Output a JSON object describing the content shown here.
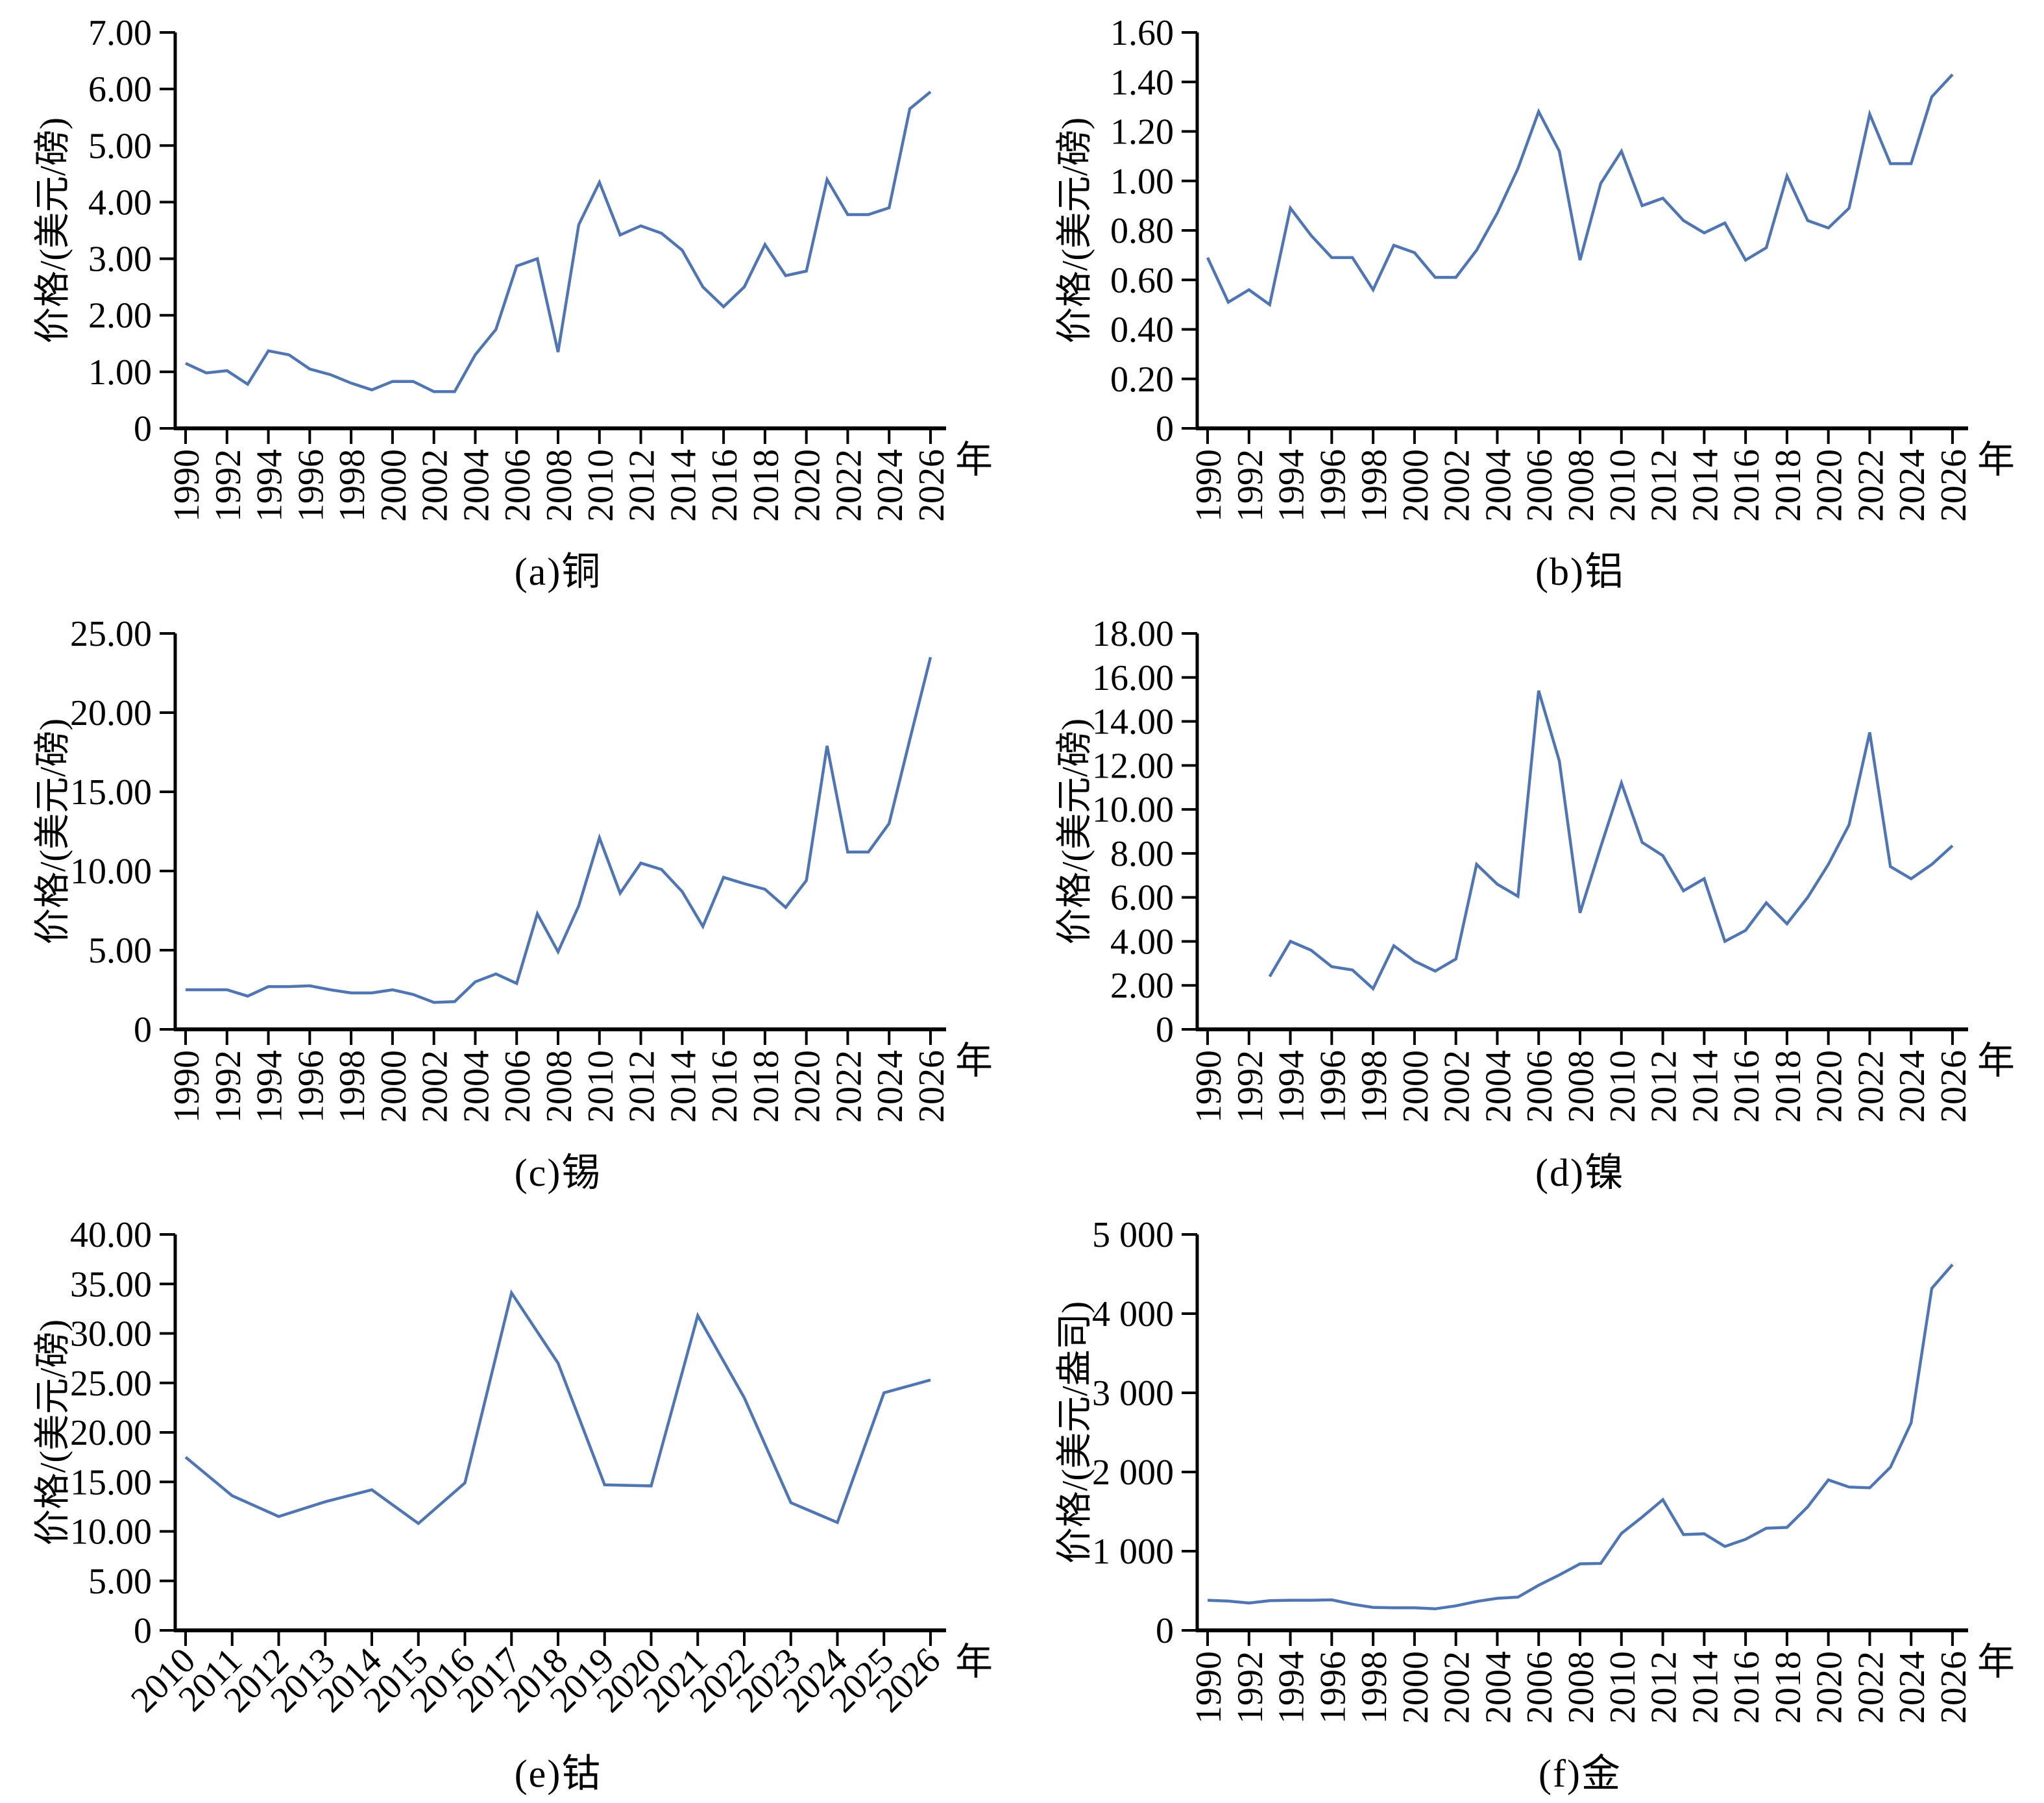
{
  "page": {
    "background": "#ffffff",
    "line_color": "#4f76b2",
    "axis_color": "#000000",
    "unit_label": "年"
  },
  "chart_data": [
    {
      "id": "a",
      "metal": "copper",
      "type": "line",
      "caption": "(a)铜",
      "ylabel": "价格/(美元/磅)",
      "xlabel": "年",
      "ylim": [
        0,
        7
      ],
      "x_label_step": 2,
      "x_label_rotation": 90,
      "grid": "off",
      "legend": "none",
      "y_ticks": [
        {
          "v": 0,
          "t": "0"
        },
        {
          "v": 1,
          "t": "1.00"
        },
        {
          "v": 2,
          "t": "2.00"
        },
        {
          "v": 3,
          "t": "3.00"
        },
        {
          "v": 4,
          "t": "4.00"
        },
        {
          "v": 5,
          "t": "5.00"
        },
        {
          "v": 6,
          "t": "6.00"
        },
        {
          "v": 7,
          "t": "7.00"
        }
      ],
      "x": [
        1990,
        1991,
        1992,
        1993,
        1994,
        1995,
        1996,
        1997,
        1998,
        1999,
        2000,
        2001,
        2002,
        2003,
        2004,
        2005,
        2006,
        2007,
        2008,
        2009,
        2010,
        2011,
        2012,
        2013,
        2014,
        2015,
        2016,
        2017,
        2018,
        2019,
        2020,
        2021,
        2022,
        2023,
        2024,
        2025,
        2026
      ],
      "values": [
        1.15,
        0.98,
        1.02,
        0.78,
        1.37,
        1.3,
        1.05,
        0.95,
        0.8,
        0.68,
        0.83,
        0.83,
        0.65,
        0.65,
        1.3,
        1.75,
        2.87,
        3.0,
        1.35,
        3.6,
        4.35,
        3.42,
        3.58,
        3.45,
        3.15,
        2.5,
        2.15,
        2.5,
        3.25,
        2.7,
        2.78,
        4.4,
        3.78,
        3.78,
        3.9,
        5.65,
        5.95
      ]
    },
    {
      "id": "b",
      "metal": "aluminum",
      "type": "line",
      "caption": "(b)铝",
      "ylabel": "价格/(美元/磅)",
      "xlabel": "年",
      "ylim": [
        0,
        1.6
      ],
      "x_label_step": 2,
      "x_label_rotation": 90,
      "grid": "off",
      "legend": "none",
      "y_ticks": [
        {
          "v": 0,
          "t": "0"
        },
        {
          "v": 0.2,
          "t": "0.20"
        },
        {
          "v": 0.4,
          "t": "0.40"
        },
        {
          "v": 0.6,
          "t": "0.60"
        },
        {
          "v": 0.8,
          "t": "0.80"
        },
        {
          "v": 1,
          "t": "1.00"
        },
        {
          "v": 1.2,
          "t": "1.20"
        },
        {
          "v": 1.4,
          "t": "1.40"
        },
        {
          "v": 1.6,
          "t": "1.60"
        }
      ],
      "x": [
        1990,
        1991,
        1992,
        1993,
        1994,
        1995,
        1996,
        1997,
        1998,
        1999,
        2000,
        2001,
        2002,
        2003,
        2004,
        2005,
        2006,
        2007,
        2008,
        2009,
        2010,
        2011,
        2012,
        2013,
        2014,
        2015,
        2016,
        2017,
        2018,
        2019,
        2020,
        2021,
        2022,
        2023,
        2024,
        2025,
        2026
      ],
      "values": [
        0.69,
        0.51,
        0.56,
        0.5,
        0.89,
        0.78,
        0.69,
        0.69,
        0.56,
        0.74,
        0.71,
        0.61,
        0.61,
        0.72,
        0.87,
        1.05,
        1.28,
        1.12,
        0.68,
        0.99,
        1.12,
        0.9,
        0.93,
        0.84,
        0.79,
        0.83,
        0.68,
        0.73,
        1.02,
        0.84,
        0.81,
        0.89,
        1.27,
        1.07,
        1.07,
        1.34,
        1.43
      ]
    },
    {
      "id": "c",
      "metal": "tin",
      "type": "line",
      "caption": "(c)锡",
      "ylabel": "价格/(美元/磅)",
      "xlabel": "年",
      "ylim": [
        0,
        25
      ],
      "x_label_step": 2,
      "x_label_rotation": 90,
      "grid": "off",
      "legend": "none",
      "y_ticks": [
        {
          "v": 0,
          "t": "0"
        },
        {
          "v": 5,
          "t": "5.00"
        },
        {
          "v": 10,
          "t": "10.00"
        },
        {
          "v": 15,
          "t": "15.00"
        },
        {
          "v": 20,
          "t": "20.00"
        },
        {
          "v": 25,
          "t": "25.00"
        }
      ],
      "x": [
        1990,
        1991,
        1992,
        1993,
        1994,
        1995,
        1996,
        1997,
        1998,
        1999,
        2000,
        2001,
        2002,
        2003,
        2004,
        2005,
        2006,
        2007,
        2008,
        2009,
        2010,
        2011,
        2012,
        2013,
        2014,
        2015,
        2016,
        2017,
        2018,
        2019,
        2020,
        2021,
        2022,
        2023,
        2024,
        2025,
        2026
      ],
      "values": [
        2.5,
        2.5,
        2.5,
        2.1,
        2.7,
        2.7,
        2.75,
        2.5,
        2.3,
        2.3,
        2.5,
        2.2,
        1.7,
        1.75,
        3.0,
        3.5,
        2.9,
        7.3,
        4.9,
        7.8,
        12.1,
        8.6,
        10.5,
        10.1,
        8.7,
        6.5,
        9.6,
        9.2,
        8.85,
        7.7,
        9.4,
        17.9,
        11.2,
        11.2,
        13.0,
        18.3,
        23.5
      ]
    },
    {
      "id": "d",
      "metal": "nickel",
      "type": "line",
      "caption": "(d)镍",
      "ylabel": "价格/(美元/磅)",
      "xlabel": "年",
      "ylim": [
        0,
        18
      ],
      "x_label_step": 2,
      "x_label_rotation": 90,
      "grid": "off",
      "legend": "none",
      "y_ticks": [
        {
          "v": 0,
          "t": "0"
        },
        {
          "v": 2,
          "t": "2.00"
        },
        {
          "v": 4,
          "t": "4.00"
        },
        {
          "v": 6,
          "t": "6.00"
        },
        {
          "v": 8,
          "t": "8.00"
        },
        {
          "v": 10,
          "t": "10.00"
        },
        {
          "v": 12,
          "t": "12.00"
        },
        {
          "v": 14,
          "t": "14.00"
        },
        {
          "v": 16,
          "t": "16.00"
        },
        {
          "v": 18,
          "t": "18.00"
        }
      ],
      "x": [
        1990,
        1991,
        1992,
        1993,
        1994,
        1995,
        1996,
        1997,
        1998,
        1999,
        2000,
        2001,
        2002,
        2003,
        2004,
        2005,
        2006,
        2007,
        2008,
        2009,
        2010,
        2011,
        2012,
        2013,
        2014,
        2015,
        2016,
        2017,
        2018,
        2019,
        2020,
        2021,
        2022,
        2023,
        2024,
        2025,
        2026
      ],
      "values": [
        null,
        null,
        null,
        2.4,
        4.0,
        3.6,
        2.85,
        2.7,
        1.85,
        3.8,
        3.1,
        2.65,
        3.2,
        7.5,
        6.6,
        6.05,
        15.4,
        12.2,
        5.3,
        8.3,
        11.2,
        8.5,
        7.9,
        6.3,
        6.85,
        4.0,
        4.5,
        5.75,
        4.8,
        6.0,
        7.5,
        9.3,
        13.5,
        7.4,
        6.85,
        7.5,
        8.35
      ]
    },
    {
      "id": "e",
      "metal": "cobalt",
      "type": "line",
      "caption": "(e)钴",
      "ylabel": "价格/(美元/磅)",
      "xlabel": "年",
      "ylim": [
        0,
        40
      ],
      "x_label_step": 1,
      "x_label_rotation": 45,
      "grid": "off",
      "legend": "none",
      "y_ticks": [
        {
          "v": 0,
          "t": "0"
        },
        {
          "v": 5,
          "t": "5.00"
        },
        {
          "v": 10,
          "t": "10.00"
        },
        {
          "v": 15,
          "t": "15.00"
        },
        {
          "v": 20,
          "t": "20.00"
        },
        {
          "v": 25,
          "t": "25.00"
        },
        {
          "v": 30,
          "t": "30.00"
        },
        {
          "v": 35,
          "t": "35.00"
        },
        {
          "v": 40,
          "t": "40.00"
        }
      ],
      "x": [
        2010,
        2011,
        2012,
        2013,
        2014,
        2015,
        2016,
        2017,
        2018,
        2019,
        2020,
        2021,
        2022,
        2023,
        2024,
        2025,
        2026
      ],
      "values": [
        17.5,
        13.6,
        11.5,
        13.0,
        14.2,
        10.8,
        14.9,
        34.1,
        27.0,
        14.7,
        14.6,
        31.8,
        23.5,
        12.9,
        10.9,
        24.0,
        25.3
      ]
    },
    {
      "id": "f",
      "metal": "gold",
      "type": "line",
      "caption": "(f)金",
      "ylabel": "价格/(美元/盎司)",
      "xlabel": "年",
      "ylim": [
        0,
        5000
      ],
      "x_label_step": 2,
      "x_label_rotation": 90,
      "grid": "off",
      "legend": "none",
      "y_ticks": [
        {
          "v": 0,
          "t": "0"
        },
        {
          "v": 1000,
          "t": "1 000"
        },
        {
          "v": 2000,
          "t": "2 000"
        },
        {
          "v": 3000,
          "t": "3 000"
        },
        {
          "v": 4000,
          "t": "4 000"
        },
        {
          "v": 5000,
          "t": "5 000"
        }
      ],
      "x": [
        1990,
        1991,
        1992,
        1993,
        1994,
        1995,
        1996,
        1997,
        1998,
        1999,
        2000,
        2001,
        2002,
        2003,
        2004,
        2005,
        2006,
        2007,
        2008,
        2009,
        2010,
        2011,
        2012,
        2013,
        2014,
        2015,
        2016,
        2017,
        2018,
        2019,
        2020,
        2021,
        2022,
        2023,
        2024,
        2025,
        2026
      ],
      "values": [
        380,
        370,
        345,
        375,
        380,
        380,
        385,
        330,
        290,
        285,
        285,
        272,
        310,
        365,
        405,
        420,
        570,
        700,
        840,
        845,
        1225,
        1430,
        1650,
        1210,
        1220,
        1060,
        1150,
        1290,
        1300,
        1560,
        1900,
        1810,
        1800,
        2060,
        2620,
        4320,
        4620
      ]
    }
  ]
}
